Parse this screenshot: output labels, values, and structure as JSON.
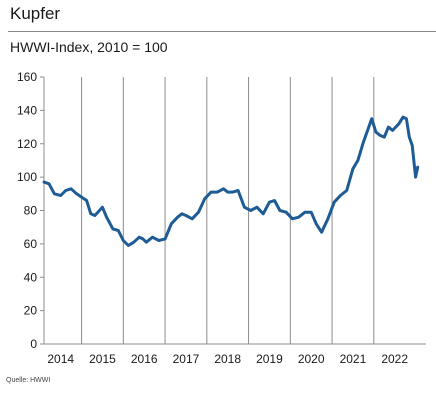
{
  "header": {
    "title": "Kupfer",
    "subtitle": "HWWI-Index, 2010 = 100"
  },
  "source": "Quelle: HWWI",
  "colors": {
    "series": "#1f5b94",
    "gridline": "#8c8c8c",
    "axis": "#8c8c8c",
    "title_rule": "#8a8a8a"
  },
  "chart_data": {
    "type": "line",
    "title": "Kupfer",
    "subtitle": "HWWI-Index, 2010 = 100",
    "xlabel": "",
    "ylabel": "",
    "ylim": [
      0,
      160
    ],
    "yticks": [
      0,
      20,
      40,
      60,
      80,
      100,
      120,
      140,
      160
    ],
    "xlim": [
      2013.6,
      2022.75
    ],
    "xticks": [
      {
        "label": "2014",
        "x": 2014
      },
      {
        "label": "2015",
        "x": 2015
      },
      {
        "label": "2016",
        "x": 2016
      },
      {
        "label": "2017",
        "x": 2017
      },
      {
        "label": "2018",
        "x": 2018
      },
      {
        "label": "2019",
        "x": 2019
      },
      {
        "label": "2020",
        "x": 2020
      },
      {
        "label": "2021",
        "x": 2021
      },
      {
        "label": "2022",
        "x": 2022
      }
    ],
    "gridlines_vertical": [
      2014.5,
      2015.5,
      2016.5,
      2017.5,
      2018.5,
      2019.5,
      2020.5,
      2021.5
    ],
    "grid": "vertical",
    "legend": "none",
    "series": [
      {
        "x": [
          2013.6,
          2013.72,
          2013.85,
          2014.0,
          2014.12,
          2014.25,
          2014.38,
          2014.5,
          2014.62,
          2014.72,
          2014.82,
          2015.0,
          2015.1,
          2015.25,
          2015.38,
          2015.5,
          2015.62,
          2015.75,
          2015.88,
          2015.97,
          2016.05,
          2016.2,
          2016.35,
          2016.5,
          2016.65,
          2016.8,
          2016.9,
          2017.0,
          2017.15,
          2017.3,
          2017.45,
          2017.6,
          2017.75,
          2017.9,
          2018.0,
          2018.12,
          2018.25,
          2018.4,
          2018.55,
          2018.7,
          2018.85,
          2019.0,
          2019.12,
          2019.25,
          2019.4,
          2019.55,
          2019.7,
          2019.85,
          2020.0,
          2020.12,
          2020.25,
          2020.4,
          2020.55,
          2020.7,
          2020.85,
          2021.0,
          2021.12,
          2021.25,
          2021.35,
          2021.45,
          2021.55,
          2021.65,
          2021.75,
          2021.85,
          2021.95,
          2022.1,
          2022.2,
          2022.28,
          2022.35,
          2022.42,
          2022.5,
          2022.55
        ],
        "y": [
          97,
          96,
          90,
          89,
          92,
          93,
          90,
          88,
          86,
          78,
          77,
          82,
          76,
          69,
          68,
          62,
          59,
          61,
          64,
          63,
          61,
          64,
          62,
          63,
          72,
          76,
          78,
          77,
          75,
          79,
          87,
          91,
          91,
          93,
          91,
          91,
          92,
          82,
          80,
          82,
          78,
          85,
          86,
          80,
          79,
          75,
          76,
          79,
          79,
          72,
          67,
          75,
          85,
          89,
          92,
          105,
          110,
          121,
          128,
          135,
          127,
          125,
          124,
          130,
          128,
          132,
          136,
          135,
          124,
          119,
          100,
          106
        ]
      }
    ]
  }
}
